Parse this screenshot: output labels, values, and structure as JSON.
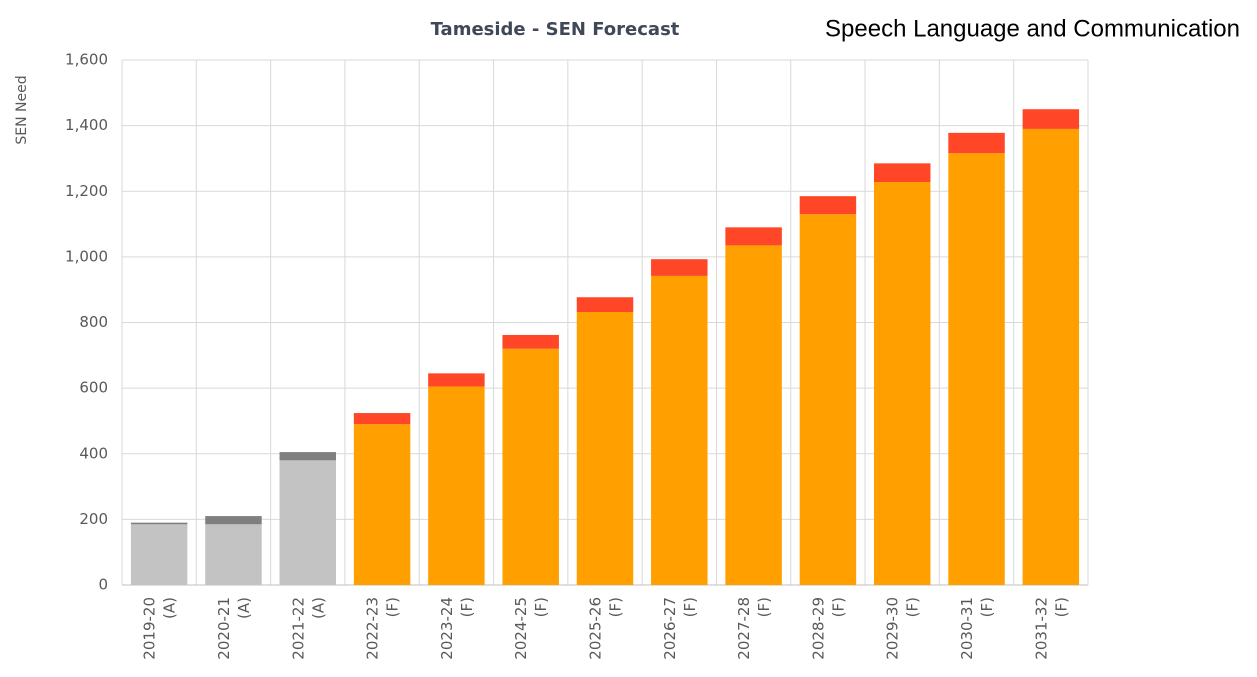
{
  "chart_data": {
    "type": "stacked-bar",
    "title": "Tameside - SEN Forecast",
    "subtitle": "Speech Language and Communication",
    "y_label": "SEN Need",
    "categories": [
      [
        "2019-20",
        "(A)"
      ],
      [
        "2020-21",
        "(A)"
      ],
      [
        "2021-22",
        "(A)"
      ],
      [
        "2022-23",
        "(F)"
      ],
      [
        "2023-24",
        "(F)"
      ],
      [
        "2024-25",
        "(F)"
      ],
      [
        "2025-26",
        "(F)"
      ],
      [
        "2026-27",
        "(F)"
      ],
      [
        "2027-28",
        "(F)"
      ],
      [
        "2028-29",
        "(F)"
      ],
      [
        "2029-30",
        "(F)"
      ],
      [
        "2030-31",
        "(F)"
      ],
      [
        "2031-32",
        "(F)"
      ]
    ],
    "series": [
      {
        "colors": [
          "#c3c3c3",
          "#c3c3c3",
          "#c3c3c3",
          "#ffa000",
          "#ffa000",
          "#ffa000",
          "#ffa000",
          "#ffa000",
          "#ffa000",
          "#ffa000",
          "#ffa000",
          "#ffa000",
          "#ffa000"
        ],
        "values": [
          185,
          185,
          380,
          490,
          605,
          720,
          832,
          942,
          1035,
          1130,
          1228,
          1316,
          1390
        ]
      },
      {
        "colors": [
          "#7f7f7f",
          "#7f7f7f",
          "#7f7f7f",
          "#ff4626",
          "#ff4626",
          "#ff4626",
          "#ff4626",
          "#ff4626",
          "#ff4626",
          "#ff4626",
          "#ff4626",
          "#ff4626",
          "#ff4626"
        ],
        "values": [
          5,
          25,
          25,
          34,
          40,
          42,
          45,
          51,
          55,
          55,
          57,
          62,
          60
        ]
      }
    ],
    "ylim": [
      0,
      1600
    ],
    "yticks": [
      0,
      200,
      400,
      600,
      800,
      {
        "value": 1000,
        "label": "1,000"
      },
      {
        "value": 1200,
        "label": "1,200"
      },
      {
        "value": 1400,
        "label": "1,400"
      },
      {
        "value": 1600,
        "label": "1,600"
      }
    ],
    "grid": true
  }
}
